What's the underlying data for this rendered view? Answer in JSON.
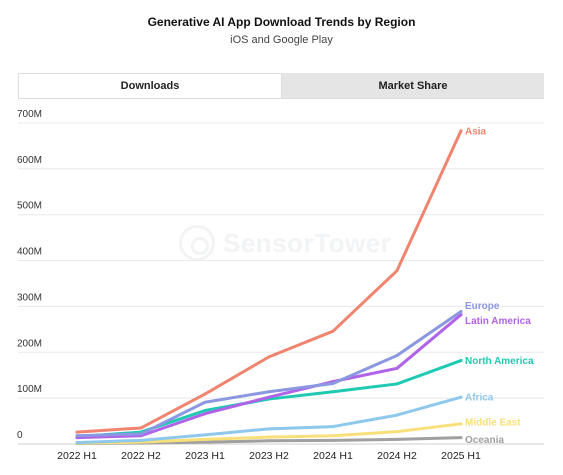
{
  "header": {
    "title": "Generative AI App Download Trends by Region",
    "subtitle": "iOS and Google Play"
  },
  "tabs": [
    {
      "label": "Downloads",
      "active": true
    },
    {
      "label": "Market Share",
      "active": false
    }
  ],
  "watermark": {
    "text": "SensorTower"
  },
  "chart_data": {
    "type": "line",
    "title": "Generative AI App Download Trends by Region",
    "subtitle": "iOS and Google Play",
    "categories": [
      "2022 H1",
      "2022 H2",
      "2023 H1",
      "2023 H2",
      "2024 H1",
      "2024 H2",
      "2025 H1"
    ],
    "y_ticks": [
      "0",
      "100M",
      "200M",
      "300M",
      "400M",
      "500M",
      "600M",
      "700M"
    ],
    "ylim": [
      0,
      700
    ],
    "y_unit": "M",
    "grid": true,
    "legend": "inline labels at line ends",
    "series": [
      {
        "name": "Asia",
        "color": "#F0846F",
        "values": [
          26,
          35,
          109,
          190,
          246,
          378,
          683
        ]
      },
      {
        "name": "Europe",
        "color": "#8B97E0",
        "values": [
          18,
          22,
          91,
          114,
          132,
          193,
          289
        ]
      },
      {
        "name": "Latin America",
        "color": "#B063E8",
        "values": [
          14,
          18,
          66,
          102,
          136,
          165,
          282
        ]
      },
      {
        "name": "North America",
        "color": "#1FC9B2",
        "values": [
          16,
          26,
          73,
          98,
          114,
          131,
          182
        ]
      },
      {
        "name": "Africa",
        "color": "#8EC8EC",
        "values": [
          3,
          8,
          20,
          33,
          38,
          63,
          102
        ]
      },
      {
        "name": "Middle East",
        "color": "#F7E07A",
        "values": [
          2,
          4,
          10,
          15,
          18,
          27,
          44
        ]
      },
      {
        "name": "Oceania",
        "color": "#A0A0A0",
        "values": [
          1,
          2,
          4,
          7,
          8,
          10,
          14
        ]
      }
    ]
  }
}
